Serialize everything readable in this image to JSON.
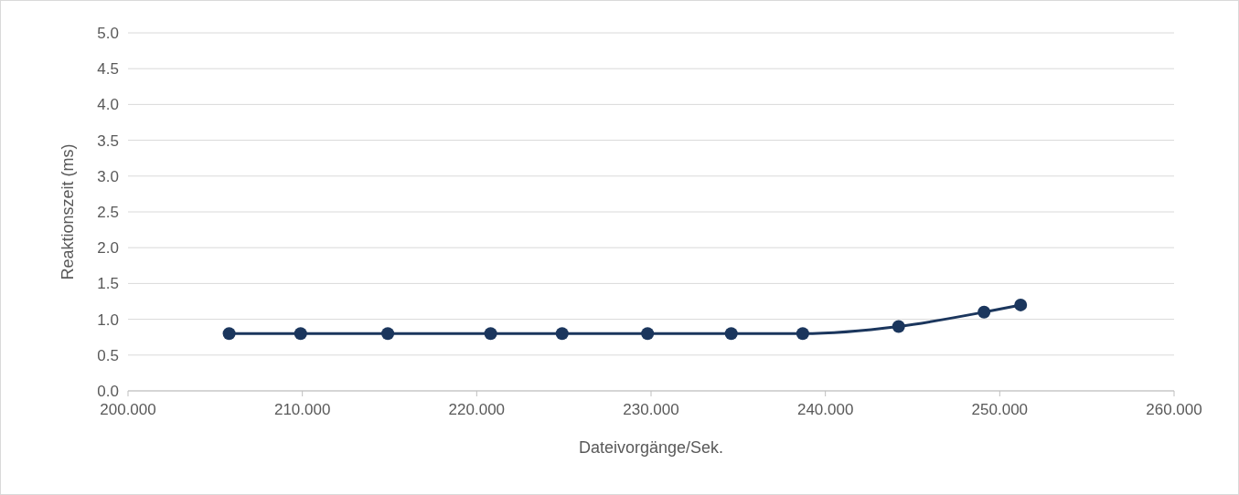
{
  "chart_data": {
    "type": "line",
    "xlabel": "Dateivorgänge/Sek.",
    "ylabel": "Reaktionszeit (ms)",
    "x": [
      205.8,
      209.9,
      214.9,
      220.8,
      224.9,
      229.8,
      234.6,
      238.7,
      244.2,
      249.1,
      251.2
    ],
    "series": [
      {
        "color": "#1b365d",
        "values": [
          0.8,
          0.8,
          0.8,
          0.8,
          0.8,
          0.8,
          0.8,
          0.8,
          0.9,
          1.1,
          1.2
        ]
      }
    ],
    "xlim": [
      200,
      260
    ],
    "xticks": [
      {
        "value": 200,
        "label": "200.000"
      },
      {
        "value": 210,
        "label": "210.000"
      },
      {
        "value": 220,
        "label": "220.000"
      },
      {
        "value": 230,
        "label": "230.000"
      },
      {
        "value": 240,
        "label": "240.000"
      },
      {
        "value": 250,
        "label": "250.000"
      },
      {
        "value": 260,
        "label": "260.000"
      }
    ],
    "ylim": [
      0,
      5
    ],
    "yticks": [
      {
        "value": 0,
        "label": "0.0"
      },
      {
        "value": 0.5,
        "label": "0.5"
      },
      {
        "value": 1,
        "label": "1.0"
      },
      {
        "value": 1.5,
        "label": "1.5"
      },
      {
        "value": 2,
        "label": "2.0"
      },
      {
        "value": 2.5,
        "label": "2.5"
      },
      {
        "value": 3,
        "label": "3.0"
      },
      {
        "value": 3.5,
        "label": "3.5"
      },
      {
        "value": 4,
        "label": "4.0"
      },
      {
        "value": 4.5,
        "label": "4.5"
      },
      {
        "value": 5,
        "label": "5.0"
      }
    ],
    "grid": "y",
    "marker": "circle",
    "line_style": "solid"
  }
}
